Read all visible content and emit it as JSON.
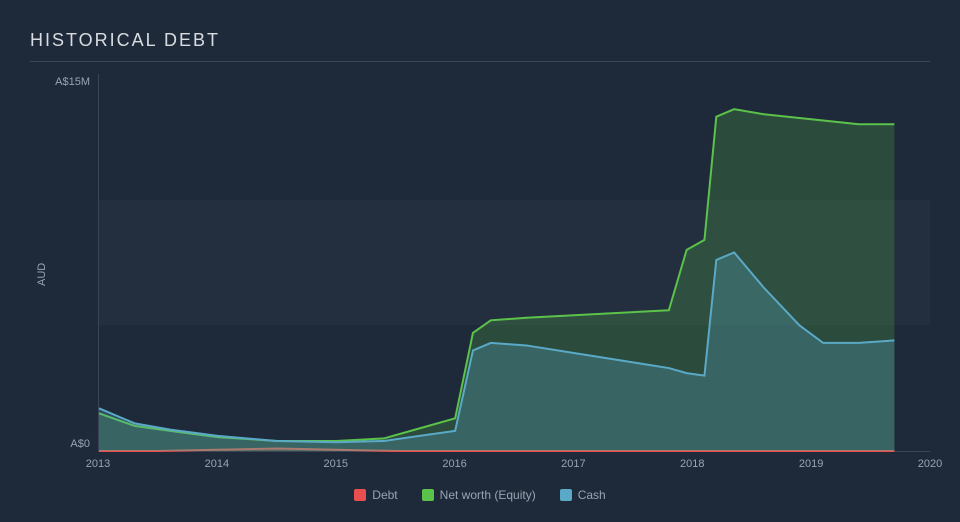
{
  "title": "HISTORICAL DEBT",
  "chart": {
    "type": "area",
    "background_color": "#1e2a3a",
    "grid_band_color": "rgba(255,255,255,0.025)",
    "axis_color": "#3a4556",
    "text_color": "#9aa3b0",
    "title_color": "#d8dce0",
    "title_fontsize": 18,
    "label_fontsize": 11,
    "y_axis_title": "AUD",
    "ylim": [
      0,
      15
    ],
    "ytick_positions": [
      0,
      5,
      10,
      15
    ],
    "ytick_labels_visible": {
      "0": "A$0",
      "15": "A$15M"
    },
    "xlim": [
      2013,
      2020
    ],
    "xtick_step": 1,
    "xtick_labels": [
      "2013",
      "2014",
      "2015",
      "2016",
      "2017",
      "2018",
      "2019",
      "2020"
    ],
    "series": [
      {
        "name": "Debt",
        "color": "#e94f4f",
        "fill_opacity": 0.25,
        "line_width": 2,
        "x": [
          2013,
          2013.5,
          2014,
          2014.5,
          2015,
          2015.5,
          2016,
          2016.5,
          2017,
          2017.5,
          2018,
          2018.5,
          2019,
          2019.5,
          2019.7
        ],
        "y": [
          0,
          0,
          0.05,
          0.1,
          0.05,
          0,
          0,
          0,
          0,
          0,
          0,
          0,
          0,
          0,
          0
        ]
      },
      {
        "name": "Net worth (Equity)",
        "color": "#5bc24a",
        "fill_opacity": 0.22,
        "line_width": 2,
        "x": [
          2013,
          2013.3,
          2013.6,
          2014,
          2014.5,
          2015,
          2015.4,
          2015.7,
          2016,
          2016.15,
          2016.3,
          2016.6,
          2017,
          2017.4,
          2017.8,
          2017.95,
          2018.1,
          2018.2,
          2018.35,
          2018.6,
          2019,
          2019.4,
          2019.7
        ],
        "y": [
          1.5,
          1.0,
          0.8,
          0.55,
          0.4,
          0.4,
          0.5,
          0.9,
          1.3,
          4.7,
          5.2,
          5.3,
          5.4,
          5.5,
          5.6,
          8.0,
          8.4,
          13.3,
          13.6,
          13.4,
          13.2,
          13.0,
          13.0
        ]
      },
      {
        "name": "Cash",
        "color": "#5aa9c7",
        "fill_opacity": 0.28,
        "line_width": 2,
        "x": [
          2013,
          2013.3,
          2013.6,
          2014,
          2014.5,
          2015,
          2015.4,
          2015.7,
          2016,
          2016.15,
          2016.3,
          2016.6,
          2017,
          2017.4,
          2017.8,
          2017.95,
          2018.1,
          2018.2,
          2018.35,
          2018.6,
          2018.9,
          2019.1,
          2019.4,
          2019.7
        ],
        "y": [
          1.7,
          1.1,
          0.85,
          0.6,
          0.4,
          0.35,
          0.4,
          0.6,
          0.8,
          4.0,
          4.3,
          4.2,
          3.9,
          3.6,
          3.3,
          3.1,
          3.0,
          7.6,
          7.9,
          6.5,
          5.0,
          4.3,
          4.3,
          4.4
        ]
      }
    ],
    "legend": {
      "position": "bottom-center",
      "items": [
        {
          "label": "Debt",
          "color": "#e94f4f"
        },
        {
          "label": "Net worth (Equity)",
          "color": "#5bc24a"
        },
        {
          "label": "Cash",
          "color": "#5aa9c7"
        }
      ]
    }
  }
}
